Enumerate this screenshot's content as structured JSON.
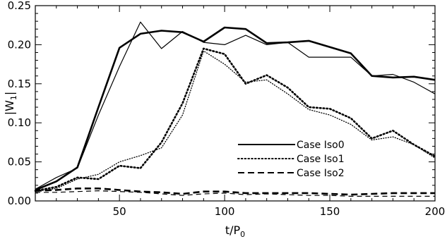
{
  "chart_data": {
    "type": "line",
    "xlabel_main": "t/P",
    "xlabel_sub": "0",
    "ylabel_main": "|W",
    "ylabel_sub": "1",
    "ylabel_end": "|",
    "xlim": [
      10,
      200
    ],
    "ylim": [
      0.0,
      0.25
    ],
    "xticks": [
      50,
      100,
      150,
      200
    ],
    "yticks": [
      0.0,
      0.05,
      0.1,
      0.15,
      0.2,
      0.25
    ],
    "xtick_labels": [
      "50",
      "100",
      "150",
      "200"
    ],
    "ytick_labels": [
      "0.00",
      "0.05",
      "0.10",
      "0.15",
      "0.20",
      "0.25"
    ],
    "legend_position": "center-right",
    "x": [
      10,
      20,
      30,
      40,
      50,
      60,
      70,
      80,
      90,
      100,
      110,
      120,
      130,
      140,
      150,
      160,
      170,
      180,
      190,
      200
    ],
    "series": [
      {
        "name": "Case Iso0",
        "style": "solid",
        "width": 2.6,
        "values": [
          0.014,
          0.025,
          0.043,
          0.12,
          0.196,
          0.214,
          0.218,
          0.216,
          0.204,
          0.222,
          0.22,
          0.202,
          0.203,
          0.205,
          0.197,
          0.189,
          0.16,
          0.158,
          0.159,
          0.155
        ]
      },
      {
        "name": "",
        "style": "solid",
        "width": 1.2,
        "values": [
          0.015,
          0.03,
          0.042,
          0.11,
          0.172,
          0.229,
          0.195,
          0.217,
          0.203,
          0.2,
          0.212,
          0.2,
          0.203,
          0.184,
          0.184,
          0.184,
          0.16,
          0.162,
          0.152,
          0.137
        ]
      },
      {
        "name": "Case Iso1",
        "style": "dotted",
        "width": 2.6,
        "values": [
          0.013,
          0.018,
          0.03,
          0.028,
          0.045,
          0.042,
          0.075,
          0.125,
          0.195,
          0.188,
          0.15,
          0.161,
          0.145,
          0.12,
          0.118,
          0.106,
          0.08,
          0.09,
          0.072,
          0.057
        ]
      },
      {
        "name": "",
        "style": "dotted",
        "width": 1.3,
        "values": [
          0.012,
          0.016,
          0.028,
          0.034,
          0.05,
          0.058,
          0.068,
          0.11,
          0.192,
          0.175,
          0.152,
          0.155,
          0.137,
          0.117,
          0.11,
          0.098,
          0.078,
          0.082,
          0.072,
          0.055
        ]
      },
      {
        "name": "Case Iso2",
        "style": "dashed",
        "width": 2.6,
        "values": [
          0.013,
          0.014,
          0.016,
          0.016,
          0.014,
          0.012,
          0.011,
          0.009,
          0.012,
          0.012,
          0.01,
          0.01,
          0.01,
          0.01,
          0.009,
          0.008,
          0.009,
          0.01,
          0.01,
          0.01
        ]
      },
      {
        "name": "",
        "style": "dashed",
        "width": 1.2,
        "values": [
          0.011,
          0.011,
          0.012,
          0.013,
          0.012,
          0.011,
          0.009,
          0.007,
          0.009,
          0.01,
          0.008,
          0.009,
          0.008,
          0.007,
          0.007,
          0.006,
          0.006,
          0.006,
          0.006,
          0.006
        ]
      }
    ]
  }
}
